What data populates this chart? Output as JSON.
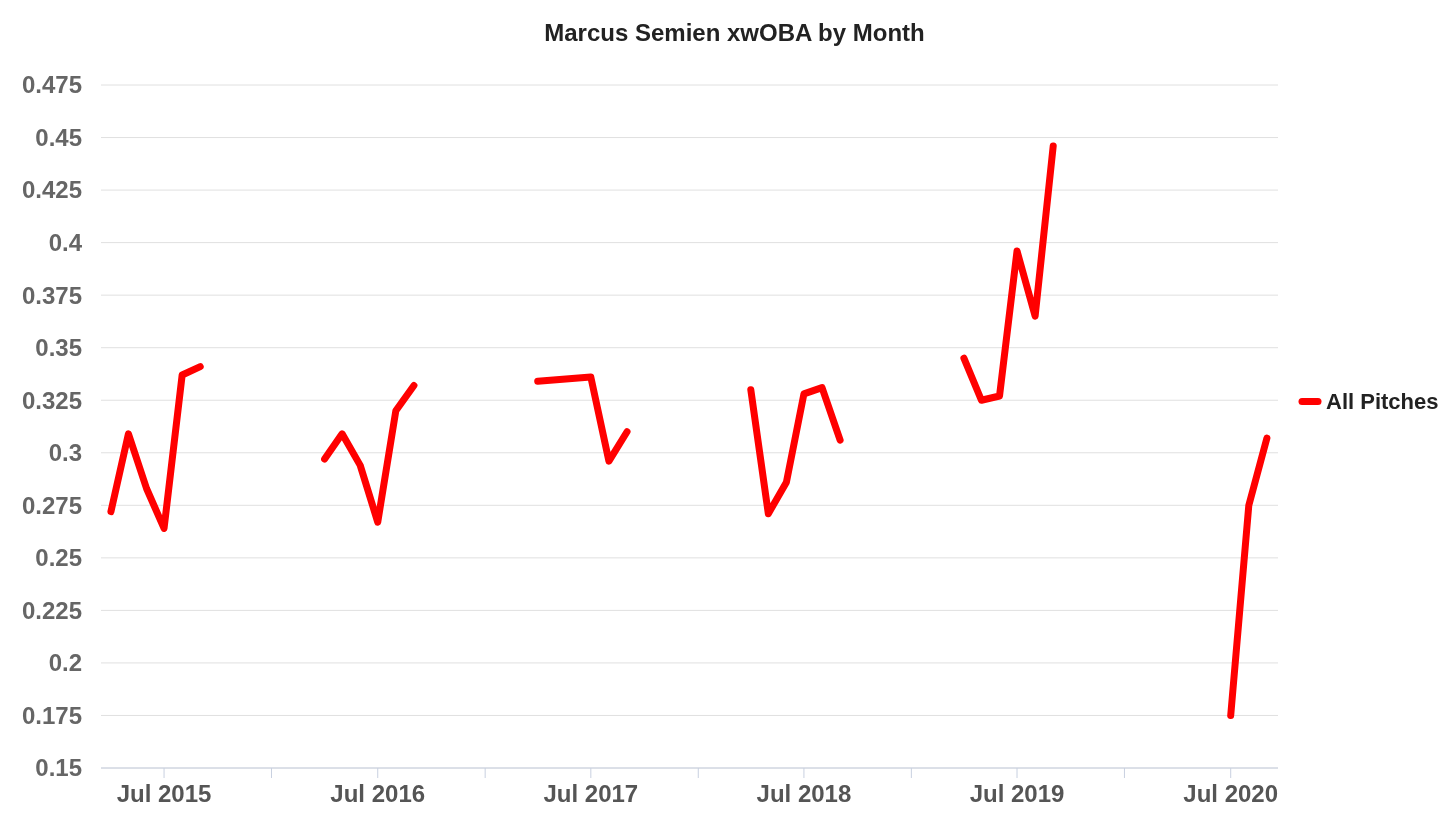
{
  "chart_data": {
    "type": "line",
    "title": "Marcus Semien xwOBA by Month",
    "x": [
      "2015-04",
      "2015-05",
      "2015-06",
      "2015-07",
      "2015-08",
      "2015-09",
      "2016-01",
      "2016-04",
      "2016-05",
      "2016-06",
      "2016-07",
      "2016-08",
      "2016-09",
      "2017-01",
      "2017-04",
      "2017-07",
      "2017-08",
      "2017-09",
      "2018-01",
      "2018-04",
      "2018-05",
      "2018-06",
      "2018-07",
      "2018-08",
      "2018-09",
      "2019-01",
      "2019-04",
      "2019-05",
      "2019-06",
      "2019-07",
      "2019-08",
      "2019-09",
      "2020-01",
      "2020-07",
      "2020-08",
      "2020-09"
    ],
    "series": [
      {
        "name": "All Pitches",
        "color": "#ff0000",
        "values": [
          0.272,
          0.309,
          0.283,
          0.264,
          0.337,
          0.341,
          null,
          0.297,
          0.309,
          0.294,
          0.267,
          0.32,
          0.332,
          null,
          0.334,
          0.336,
          0.296,
          0.31,
          null,
          0.33,
          0.271,
          0.286,
          0.328,
          0.331,
          0.306,
          null,
          0.345,
          0.325,
          0.327,
          0.396,
          0.365,
          0.446,
          null,
          0.175,
          0.275,
          0.307
        ]
      }
    ],
    "xlim": [
      "2015-03-15",
      "2020-09-20"
    ],
    "xticks": [
      {
        "value": "2015-07",
        "label": "Jul 2015"
      },
      {
        "value": "2016-01",
        "label": null
      },
      {
        "value": "2016-07",
        "label": "Jul 2016"
      },
      {
        "value": "2017-01",
        "label": null
      },
      {
        "value": "2017-07",
        "label": "Jul 2017"
      },
      {
        "value": "2018-01",
        "label": null
      },
      {
        "value": "2018-07",
        "label": "Jul 2018"
      },
      {
        "value": "2019-01",
        "label": null
      },
      {
        "value": "2019-07",
        "label": "Jul 2019"
      },
      {
        "value": "2020-01",
        "label": null
      },
      {
        "value": "2020-07",
        "label": "Jul 2020"
      }
    ],
    "ylim": [
      0.15,
      0.475
    ],
    "yticks": [
      0.15,
      0.175,
      0.2,
      0.225,
      0.25,
      0.275,
      0.3,
      0.325,
      0.35,
      0.375,
      0.4,
      0.425,
      0.45,
      0.475
    ],
    "grid": "y",
    "legend": "right",
    "marker": "none",
    "line_style": "solid"
  }
}
